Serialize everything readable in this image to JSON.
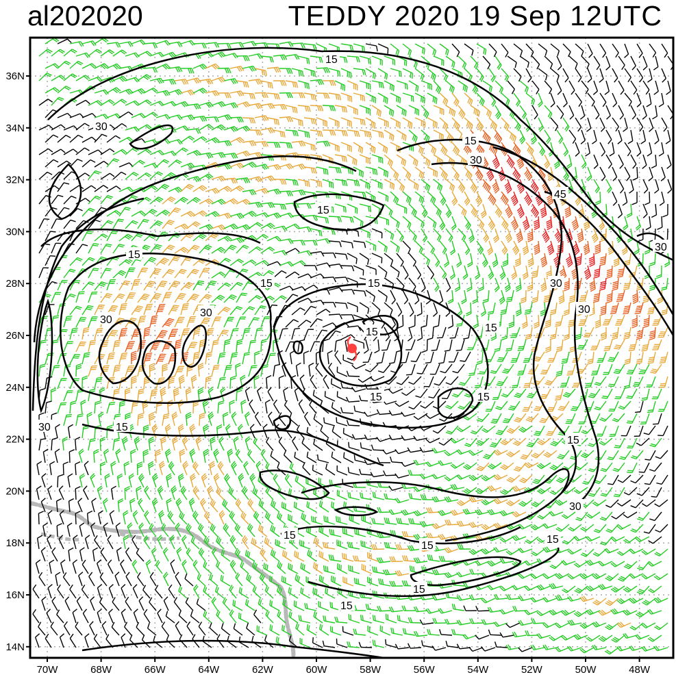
{
  "header": {
    "storm_id": "al202020",
    "storm_time": "TEDDY 2020 19 Sep 12UTC"
  },
  "axes": {
    "lat_labels": [
      "36N",
      "34N",
      "32N",
      "30N",
      "28N",
      "26N",
      "24N",
      "22N",
      "20N",
      "18N",
      "16N",
      "14N"
    ],
    "lon_labels": [
      "70W",
      "68W",
      "66W",
      "64W",
      "62W",
      "60W",
      "58W",
      "56W",
      "54W",
      "52W",
      "50W",
      "48W"
    ]
  },
  "contour_labels": {
    "c15": "15",
    "c30": "30",
    "c45": "45"
  },
  "colors": {
    "barb_calm": "#000000",
    "barb_moderate": "#22cc22",
    "barb_strong": "#e8a838",
    "barb_very_strong": "#e86020",
    "barb_extreme": "#e82020",
    "storm_center": "#ff4040",
    "land_outline": "#b8b8b8",
    "contour": "#000000",
    "grid": "#aaaaaa"
  },
  "storm_center": {
    "lon": -58.6,
    "lat": 25.5
  }
}
